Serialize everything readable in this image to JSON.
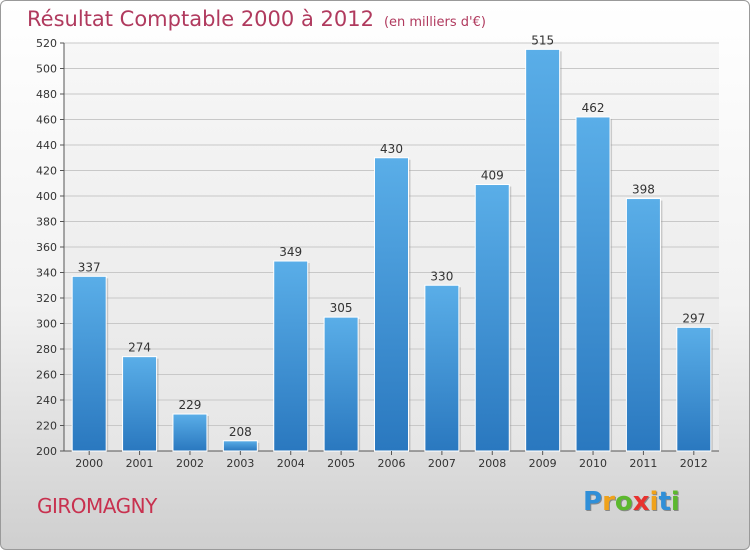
{
  "chart_data": {
    "type": "bar",
    "title": "Résultat Comptable 2000 à 2012",
    "subtitle": "(en milliers d'€)",
    "categories": [
      "2000",
      "2001",
      "2002",
      "2003",
      "2004",
      "2005",
      "2006",
      "2007",
      "2008",
      "2009",
      "2010",
      "2011",
      "2012"
    ],
    "values": [
      337,
      274,
      229,
      208,
      349,
      305,
      430,
      330,
      409,
      515,
      462,
      398,
      297
    ],
    "ylim": [
      200,
      520
    ],
    "yticks": [
      200,
      220,
      240,
      260,
      280,
      300,
      320,
      340,
      360,
      380,
      400,
      420,
      440,
      460,
      480,
      500,
      520
    ],
    "grid": true,
    "bar_color": "#3f98dc",
    "xlabel": "",
    "ylabel": ""
  },
  "place": "GIROMAGNY",
  "brand": {
    "letters": [
      "P",
      "r",
      "o",
      "x",
      "i",
      "t",
      "i"
    ],
    "colors": [
      "#2f8fd8",
      "#f0a21a",
      "#5cb82e",
      "#e8322f",
      "#f0a21a",
      "#2f8fd8",
      "#5cb82e"
    ]
  }
}
